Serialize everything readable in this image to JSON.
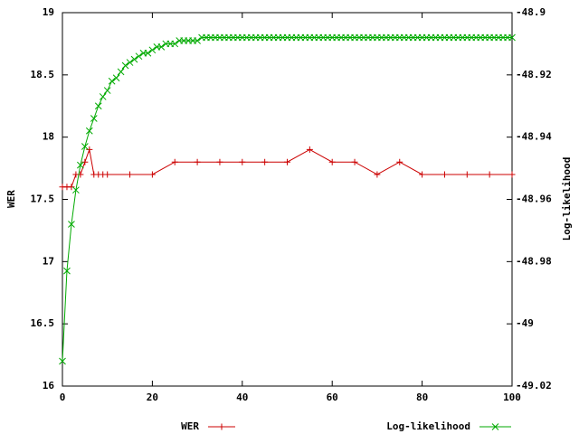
{
  "chart_data": {
    "type": "line",
    "xlabel": null,
    "ylabel": "WER",
    "y2label": "Log-likelihood",
    "xlim": [
      0,
      100
    ],
    "xticks": [
      0,
      20,
      40,
      60,
      80,
      100
    ],
    "ylim": [
      16,
      19
    ],
    "yticks": [
      16,
      16.5,
      17,
      17.5,
      18,
      18.5,
      19
    ],
    "y2lim": [
      -49.02,
      -48.9
    ],
    "y2ticks": [
      -49.02,
      -49,
      -48.98,
      -48.96,
      -48.94,
      -48.92,
      -48.9
    ],
    "legend": "bottom",
    "series": [
      {
        "name": "WER",
        "color": "#cc0000",
        "marker": "plus",
        "axis": "y",
        "x": [
          0,
          1,
          2,
          3,
          4,
          5,
          6,
          7,
          8,
          9,
          10,
          15,
          20,
          25,
          30,
          35,
          40,
          45,
          50,
          55,
          60,
          65,
          70,
          75,
          80,
          85,
          90,
          95,
          100
        ],
        "values": [
          17.6,
          17.6,
          17.6,
          17.7,
          17.7,
          17.8,
          17.9,
          17.7,
          17.7,
          17.7,
          17.7,
          17.7,
          17.7,
          17.8,
          17.8,
          17.8,
          17.8,
          17.8,
          17.8,
          17.9,
          17.8,
          17.8,
          17.7,
          17.8,
          17.7,
          17.7,
          17.7,
          17.7,
          17.7
        ]
      },
      {
        "name": "Log-likelihood",
        "color": "#00aa00",
        "marker": "cross",
        "axis": "y2",
        "x": [
          0,
          1,
          2,
          3,
          4,
          5,
          6,
          7,
          8,
          9,
          10,
          11,
          12,
          13,
          14,
          15,
          16,
          17,
          18,
          19,
          20,
          21,
          22,
          23,
          24,
          25,
          26,
          27,
          28,
          29,
          30,
          31,
          32,
          33,
          34,
          35,
          36,
          37,
          38,
          39,
          40,
          41,
          42,
          43,
          44,
          45,
          46,
          47,
          48,
          49,
          50,
          51,
          52,
          53,
          54,
          55,
          56,
          57,
          58,
          59,
          60,
          61,
          62,
          63,
          64,
          65,
          66,
          67,
          68,
          69,
          70,
          71,
          72,
          73,
          74,
          75,
          76,
          77,
          78,
          79,
          80,
          81,
          82,
          83,
          84,
          85,
          86,
          87,
          88,
          89,
          90,
          91,
          92,
          93,
          94,
          95,
          96,
          97,
          98,
          99,
          100
        ],
        "values": [
          -49.012,
          -48.983,
          -48.968,
          -48.957,
          -48.949,
          -48.943,
          -48.938,
          -48.934,
          -48.93,
          -48.927,
          -48.925,
          -48.922,
          -48.921,
          -48.919,
          -48.917,
          -48.916,
          -48.915,
          -48.914,
          -48.913,
          -48.913,
          -48.912,
          -48.911,
          -48.911,
          -48.91,
          -48.91,
          -48.91,
          -48.909,
          -48.909,
          -48.909,
          -48.909,
          -48.909,
          -48.908,
          -48.908,
          -48.908,
          -48.908,
          -48.908,
          -48.908,
          -48.908,
          -48.908,
          -48.908,
          -48.908,
          -48.908,
          -48.908,
          -48.908,
          -48.908,
          -48.908,
          -48.908,
          -48.908,
          -48.908,
          -48.908,
          -48.908,
          -48.908,
          -48.908,
          -48.908,
          -48.908,
          -48.908,
          -48.908,
          -48.908,
          -48.908,
          -48.908,
          -48.908,
          -48.908,
          -48.908,
          -48.908,
          -48.908,
          -48.908,
          -48.908,
          -48.908,
          -48.908,
          -48.908,
          -48.908,
          -48.908,
          -48.908,
          -48.908,
          -48.908,
          -48.908,
          -48.908,
          -48.908,
          -48.908,
          -48.908,
          -48.908,
          -48.908,
          -48.908,
          -48.908,
          -48.908,
          -48.908,
          -48.908,
          -48.908,
          -48.908,
          -48.908,
          -48.908,
          -48.908,
          -48.908,
          -48.908,
          -48.908,
          -48.908,
          -48.908,
          -48.908,
          -48.908,
          -48.908,
          -48.908
        ]
      }
    ]
  }
}
